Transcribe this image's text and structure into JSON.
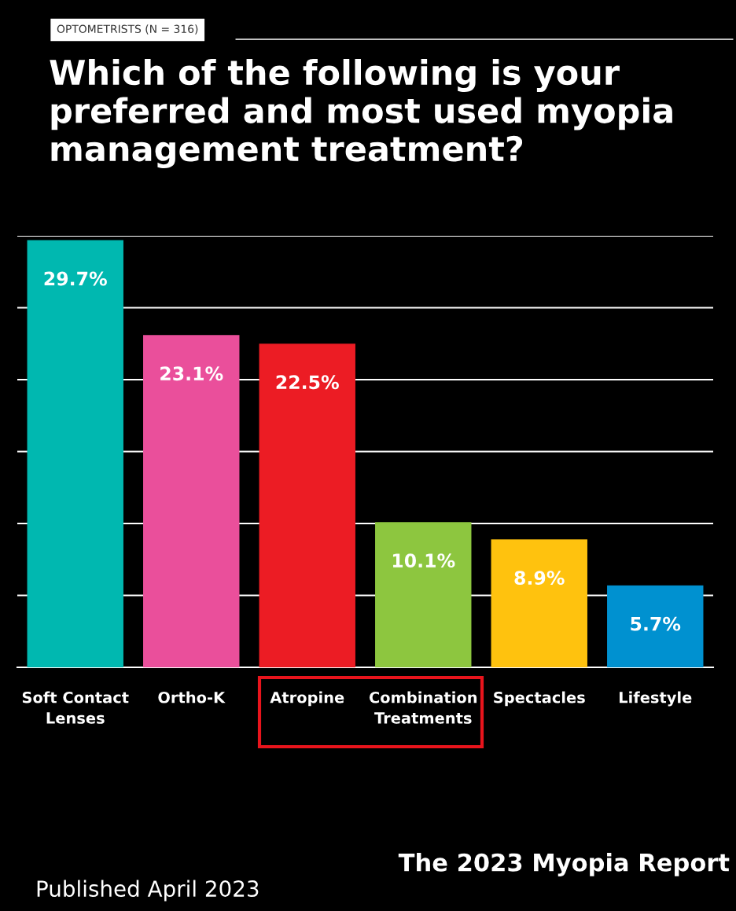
{
  "chart_data": {
    "type": "bar",
    "subtitle": "OPTOMETRISTS (N = 316)",
    "title": "Which of the following is your preferred and most used myopia management treatment?",
    "categories": [
      "Soft Contact\nLenses",
      "Ortho-K",
      "Atropine",
      "Combination\nTreatments",
      "Spectacles",
      "Lifestyle"
    ],
    "values": [
      29.7,
      23.1,
      22.5,
      10.1,
      8.9,
      5.7
    ],
    "colors": [
      "#00b8b0",
      "#ea4f9b",
      "#ec1c24",
      "#8dc63f",
      "#ffc20e",
      "#0091d0"
    ],
    "value_labels": [
      "29.7%",
      "23.1%",
      "22.5%",
      "10.1%",
      "8.9%",
      "5.7%"
    ],
    "ylim": [
      0,
      30
    ],
    "yticks": [
      {
        "value": 0,
        "label": null
      },
      {
        "value": 5,
        "label": null
      },
      {
        "value": 10,
        "label": null
      },
      {
        "value": 15,
        "label": null
      },
      {
        "value": 20,
        "label": null
      },
      {
        "value": 25,
        "label": null
      },
      {
        "value": 30,
        "label": null
      }
    ],
    "grid": "y",
    "tick_labels": "x",
    "annotations": [
      "Published April 2023",
      "The 2023 Myopia Report"
    ]
  }
}
